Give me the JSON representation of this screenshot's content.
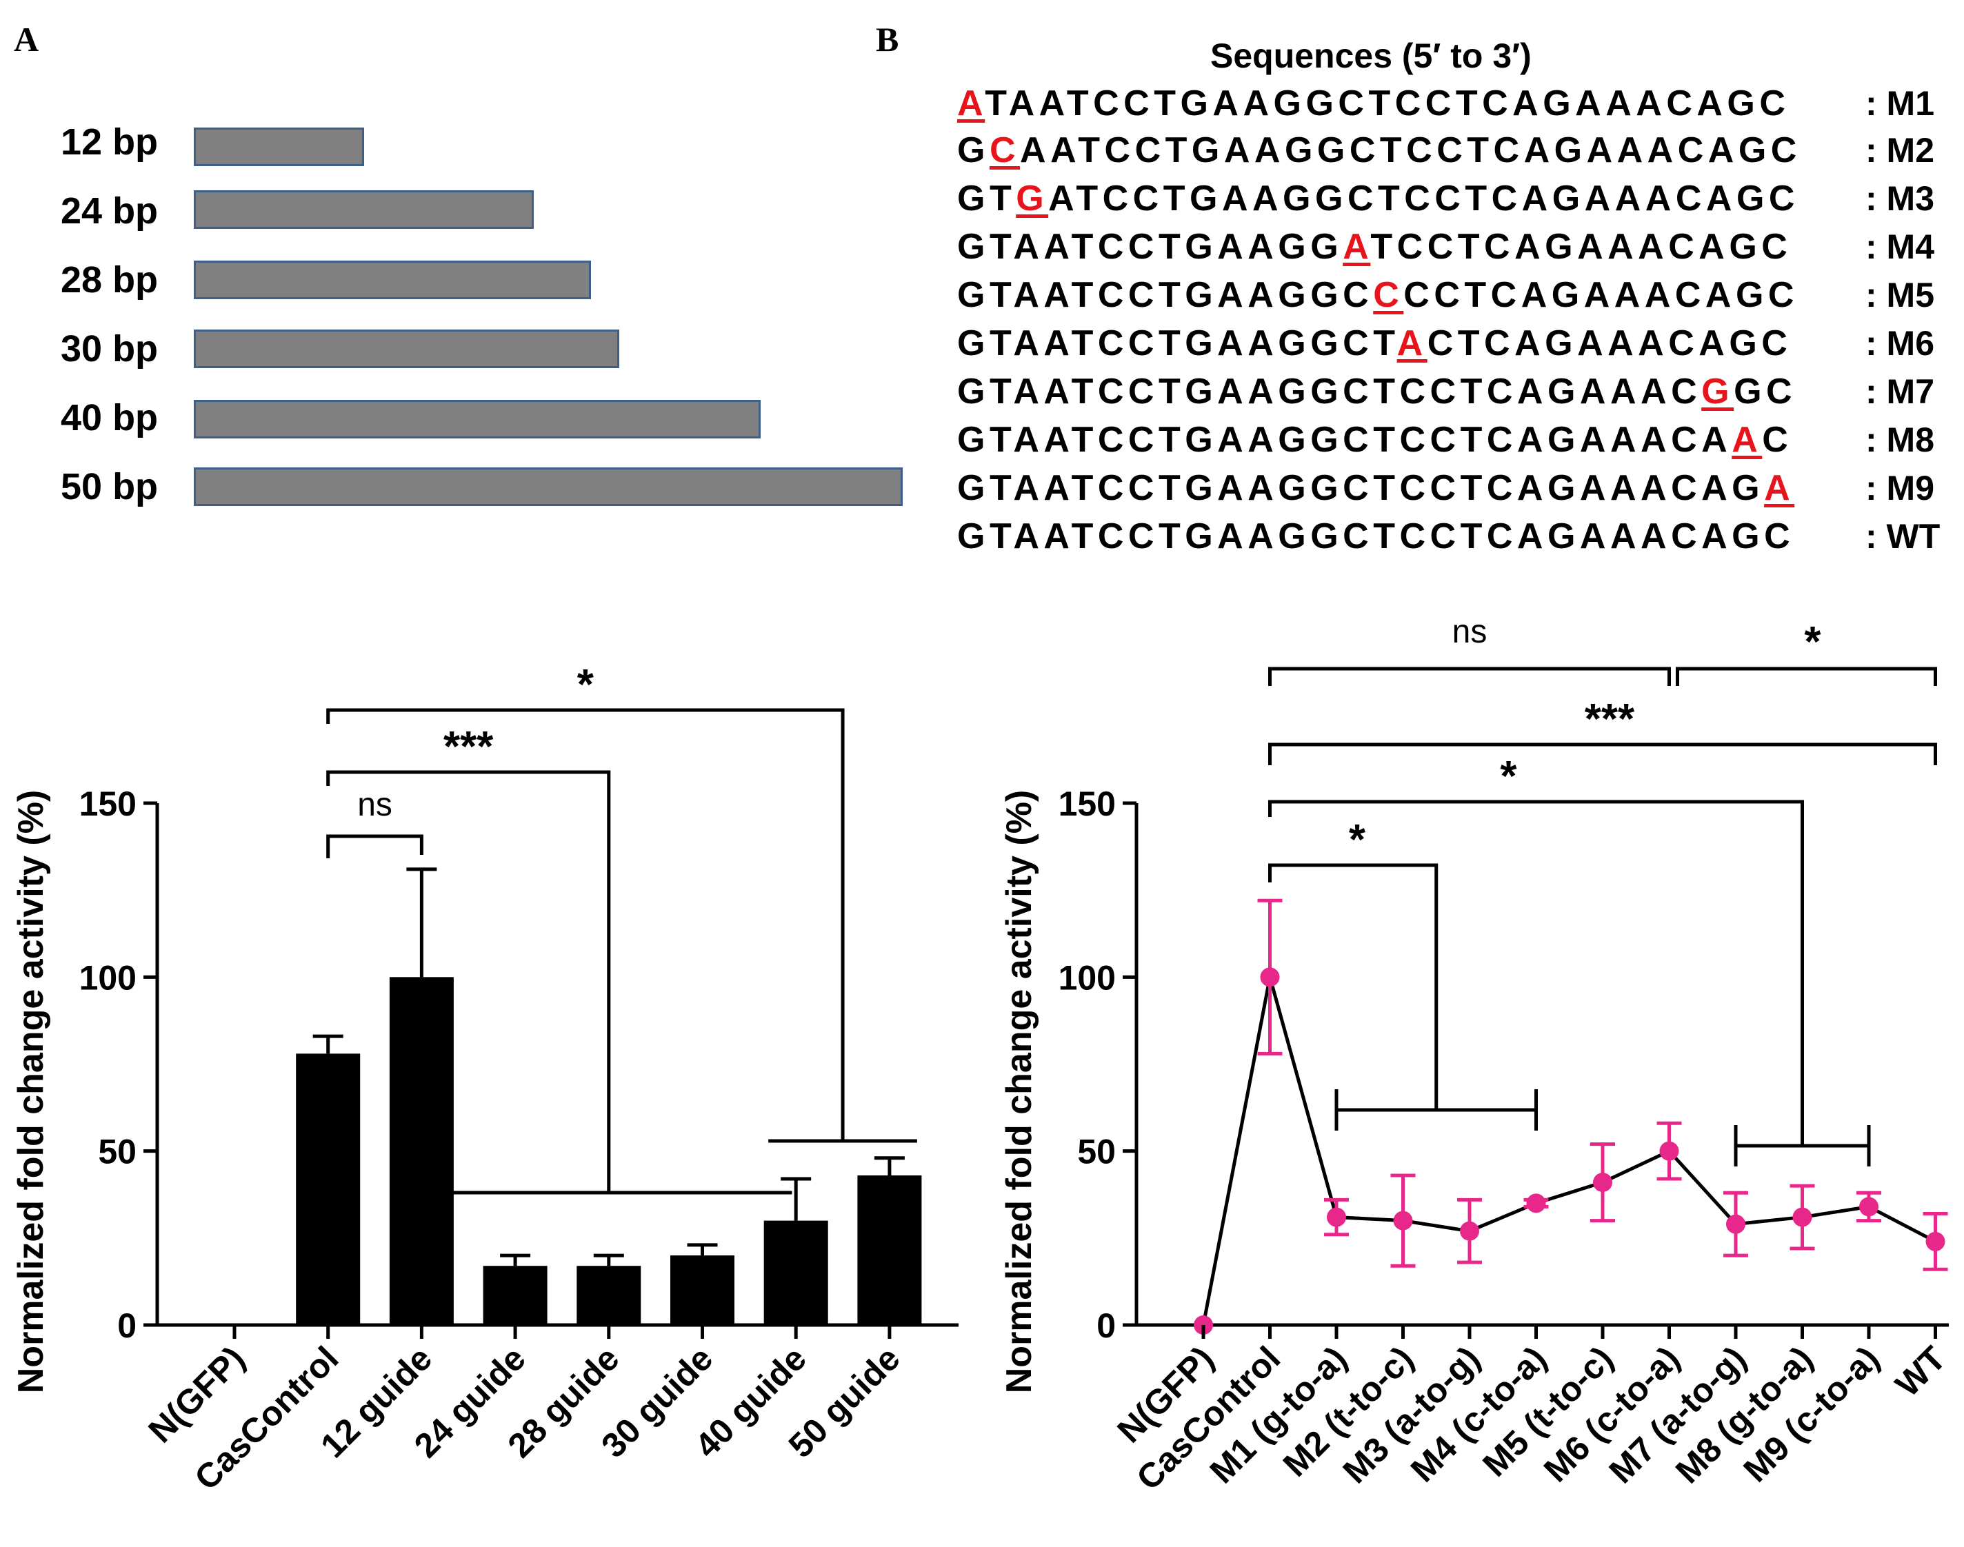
{
  "panels": {
    "a": "A",
    "b": "B"
  },
  "lengths": [
    {
      "label": "12 bp",
      "bp": 12
    },
    {
      "label": "24 bp",
      "bp": 24
    },
    {
      "label": "28 bp",
      "bp": 28
    },
    {
      "label": "30 bp",
      "bp": 30
    },
    {
      "label": "40 bp",
      "bp": 40
    },
    {
      "label": "50 bp",
      "bp": 50
    }
  ],
  "sequences": {
    "title": "Sequences (5′ to 3′)",
    "rows": [
      {
        "seq": "ATAATCCTGAAGGCTCCTCAGAAACAGC",
        "mut_index": 0,
        "tag": ": M1"
      },
      {
        "seq": "GCAATCCTGAAGGCTCCTCAGAAACAGC",
        "mut_index": 1,
        "tag": ": M2"
      },
      {
        "seq": "GTGATCCTGAAGGCTCCTCAGAAACAGC",
        "mut_index": 2,
        "tag": ": M3"
      },
      {
        "seq": "GTAATCCTGAAGGATCCTCAGAAACAGC",
        "mut_index": 13,
        "tag": ": M4"
      },
      {
        "seq": "GTAATCCTGAAGGCCCCTCAGAAACAGC",
        "mut_index": 14,
        "tag": ": M5"
      },
      {
        "seq": "GTAATCCTGAAGGCTACTCAGAAACAGC",
        "mut_index": 15,
        "tag": ": M6"
      },
      {
        "seq": "GTAATCCTGAAGGCTCCTCAGAAACGGC",
        "mut_index": 25,
        "tag": ": M7"
      },
      {
        "seq": "GTAATCCTGAAGGCTCCTCAGAAACAAC",
        "mut_index": 26,
        "tag": ": M8"
      },
      {
        "seq": "GTAATCCTGAAGGCTCCTCAGAAACAGA",
        "mut_index": 27,
        "tag": ": M9"
      },
      {
        "seq": "GTAATCCTGAAGGCTCCTCAGAAACAGC",
        "mut_index": -1,
        "tag": ": WT"
      }
    ]
  },
  "colors": {
    "bar": "#000000",
    "line": "#000000",
    "point": "#e8278a",
    "error": "#e8278a",
    "mutation": "#e8141b",
    "length_bar": "#808080",
    "length_bar_border": "#3e5f8a"
  },
  "chart_data": [
    {
      "type": "bar",
      "ylabel": "Normalized fold change activity (%)",
      "ylim": [
        0,
        150
      ],
      "yticks": [
        0,
        50,
        100,
        150
      ],
      "categories": [
        "N(GFP)",
        "CasControl",
        "12 guide",
        "24 guide",
        "28 guide",
        "30 guide",
        "40 guide",
        "50 guide"
      ],
      "values": [
        0,
        78,
        100,
        17,
        17,
        20,
        30,
        43
      ],
      "errors": [
        0,
        5,
        31,
        3,
        3,
        3,
        12,
        5
      ],
      "comparisons": [
        {
          "label": "ns",
          "from": [
            1
          ],
          "to": [
            2
          ]
        },
        {
          "label": "***",
          "from": [
            1
          ],
          "to": [
            3,
            5
          ]
        },
        {
          "label": "*",
          "from": [
            1
          ],
          "to": [
            6,
            7
          ]
        }
      ]
    },
    {
      "type": "line",
      "ylabel": "Normalized fold change activity (%)",
      "ylim": [
        0,
        150
      ],
      "yticks": [
        0,
        50,
        100,
        150
      ],
      "categories": [
        "N(GFP)",
        "CasControl",
        "M1 (g-to-a)",
        "M2 (t-to-c)",
        "M3 (a-to-g)",
        "M4 (c-to-a)",
        "M5 (t-to-c)",
        "M6 (c-to-a)",
        "M7 (a-to-g)",
        "M8 (g-to-a)",
        "M9 (c-to-a)",
        "WT"
      ],
      "values": [
        0,
        100,
        31,
        30,
        27,
        35,
        41,
        50,
        29,
        31,
        34,
        24
      ],
      "errors": [
        0,
        22,
        5,
        13,
        9,
        1,
        11,
        8,
        9,
        9,
        4,
        8
      ],
      "comparisons": [
        {
          "label": "ns",
          "from": [
            1
          ],
          "to": [
            7
          ]
        },
        {
          "label": "*",
          "from": [
            7
          ],
          "to": [
            11
          ]
        },
        {
          "label": "***",
          "from": [
            1
          ],
          "to": [
            11
          ]
        },
        {
          "label": "*",
          "from": [
            1
          ],
          "to": [
            8,
            10
          ]
        },
        {
          "label": "*",
          "from": [
            1
          ],
          "to": [
            2,
            5
          ]
        }
      ]
    }
  ]
}
